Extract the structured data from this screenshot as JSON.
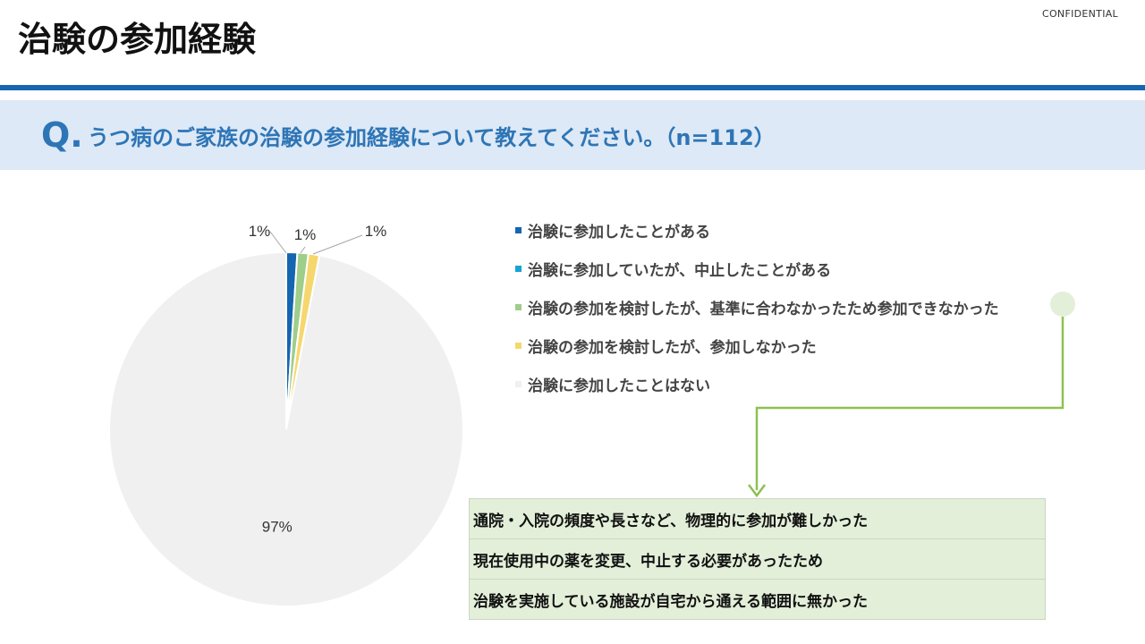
{
  "header": {
    "confidential": "CONFIDENTIAL",
    "title": "治験の参加経験"
  },
  "question": {
    "mark": "Q.",
    "text": "うつ病のご家族の治験の参加経験について教えてください。（n=112）"
  },
  "chart_data": {
    "type": "pie",
    "start_angle_deg": 0,
    "direction": "clockwise",
    "categories": [
      "治験に参加したことがある",
      "治験に参加していたが、中止したことがある",
      "治験の参加を検討したが、基準に合わなかったため参加できなかった",
      "治験の参加を検討したが、参加しなかった",
      "治験に参加したことはない"
    ],
    "values": [
      1,
      0,
      1,
      1,
      97
    ],
    "data_labels": [
      "1%",
      "",
      "1%",
      "1%",
      "97%"
    ],
    "colors": [
      "#1565b0",
      "#17a3d6",
      "#9fcd8a",
      "#f5d76e",
      "#f0f0f0"
    ],
    "legend_position": "right"
  },
  "reasons": {
    "items": [
      "通院・入院の頻度や長さなど、物理的に参加が難しかった",
      "現在使用中の薬を変更、中止する必要があったため",
      "治験を実施している施設が自宅から通える範囲に無かった"
    ],
    "accent_color": "#8cc152"
  }
}
